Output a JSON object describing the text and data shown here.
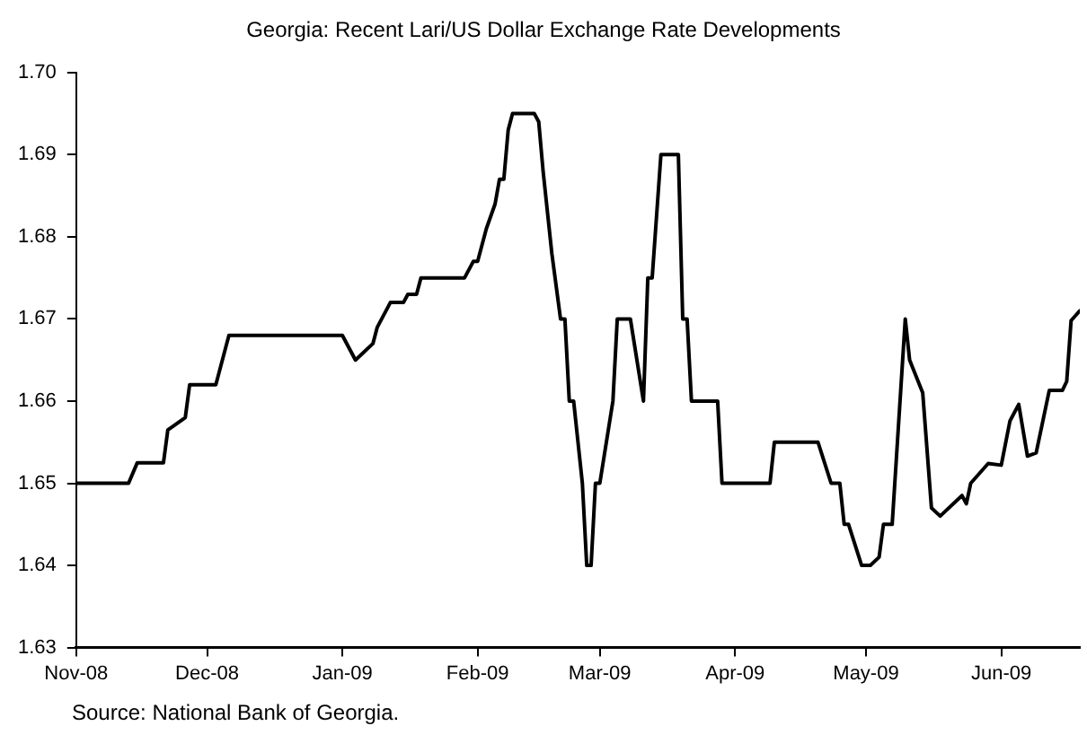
{
  "chart_data": {
    "type": "line",
    "title": "Georgia: Recent Lari/US Dollar Exchange Rate Developments",
    "x": [
      "2008-11-01",
      "2008-11-13",
      "2008-11-15",
      "2008-11-21",
      "2008-11-22",
      "2008-11-26",
      "2008-11-27",
      "2008-12-01",
      "2008-12-03",
      "2008-12-06",
      "2009-01-01",
      "2009-01-04",
      "2009-01-08",
      "2009-01-09",
      "2009-01-12",
      "2009-01-15",
      "2009-01-16",
      "2009-01-18",
      "2009-01-19",
      "2009-01-29",
      "2009-01-31",
      "2009-02-01",
      "2009-02-03",
      "2009-02-05",
      "2009-02-06",
      "2009-02-07",
      "2009-02-08",
      "2009-02-09",
      "2009-02-14",
      "2009-02-15",
      "2009-02-16",
      "2009-02-18",
      "2009-02-20",
      "2009-02-21",
      "2009-02-22",
      "2009-02-23",
      "2009-02-25",
      "2009-02-26",
      "2009-02-27",
      "2009-02-28",
      "2009-03-01",
      "2009-03-04",
      "2009-03-05",
      "2009-03-08",
      "2009-03-11",
      "2009-03-12",
      "2009-03-13",
      "2009-03-15",
      "2009-03-19",
      "2009-03-20",
      "2009-03-21",
      "2009-03-22",
      "2009-03-28",
      "2009-03-29",
      "2009-04-09",
      "2009-04-10",
      "2009-04-20",
      "2009-04-23",
      "2009-04-25",
      "2009-04-26",
      "2009-04-27",
      "2009-04-30",
      "2009-05-02",
      "2009-05-04",
      "2009-05-05",
      "2009-05-07",
      "2009-05-10",
      "2009-05-11",
      "2009-05-14",
      "2009-05-16",
      "2009-05-18",
      "2009-05-23",
      "2009-05-24",
      "2009-05-25",
      "2009-05-26",
      "2009-05-29",
      "2009-06-01",
      "2009-06-03",
      "2009-06-05",
      "2009-06-07",
      "2009-06-09",
      "2009-06-12",
      "2009-06-15",
      "2009-06-16",
      "2009-06-17",
      "2009-06-19"
    ],
    "series": [
      {
        "color": "#000000",
        "values": [
          1.65,
          1.65,
          1.6525,
          1.6525,
          1.6565,
          1.658,
          1.662,
          1.662,
          1.662,
          1.668,
          1.668,
          1.665,
          1.667,
          1.669,
          1.672,
          1.672,
          1.673,
          1.673,
          1.675,
          1.675,
          1.677,
          1.677,
          1.681,
          1.684,
          1.687,
          1.687,
          1.693,
          1.695,
          1.695,
          1.694,
          1.688,
          1.678,
          1.67,
          1.67,
          1.66,
          1.66,
          1.65,
          1.64,
          1.64,
          1.65,
          1.65,
          1.66,
          1.67,
          1.67,
          1.66,
          1.675,
          1.675,
          1.69,
          1.69,
          1.67,
          1.67,
          1.66,
          1.66,
          1.65,
          1.65,
          1.655,
          1.655,
          1.65,
          1.65,
          1.645,
          1.645,
          1.64,
          1.64,
          1.641,
          1.645,
          1.645,
          1.67,
          1.665,
          1.661,
          1.647,
          1.646,
          1.6485,
          1.6475,
          1.65,
          1.6506,
          1.6524,
          1.6522,
          1.6576,
          1.6596,
          1.6533,
          1.6537,
          1.6613,
          1.6613,
          1.6624,
          1.6698,
          1.671
        ]
      }
    ],
    "xlim": [
      "2008-11-01",
      "2009-06-19"
    ],
    "xticks": [
      {
        "value": "2008-11-01",
        "label": "Nov-08"
      },
      {
        "value": "2008-12-01",
        "label": "Dec-08"
      },
      {
        "value": "2009-01-01",
        "label": "Jan-09"
      },
      {
        "value": "2009-02-01",
        "label": "Feb-09"
      },
      {
        "value": "2009-03-01",
        "label": "Mar-09"
      },
      {
        "value": "2009-04-01",
        "label": "Apr-09"
      },
      {
        "value": "2009-05-01",
        "label": "May-09"
      },
      {
        "value": "2009-06-01",
        "label": "Jun-09"
      }
    ],
    "ylim": [
      1.63,
      1.7
    ],
    "yticks": [
      1.63,
      1.64,
      1.65,
      1.66,
      1.67,
      1.68,
      1.69,
      {
        "value": 1.7,
        "label": "1.70"
      }
    ],
    "marker": "none",
    "line_style": "solid",
    "annotations": [
      "Source: National Bank of Georgia."
    ]
  }
}
